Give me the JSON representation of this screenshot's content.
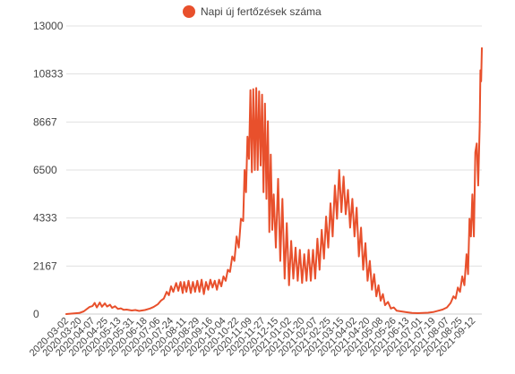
{
  "chart_data": {
    "type": "line",
    "legend": {
      "label": "Napi új fertőzések száma",
      "position": "top-center"
    },
    "series": [
      {
        "name": "Napi új fertőzések száma",
        "color": "#e8502c",
        "points": [
          [
            "2020-03-02",
            0
          ],
          [
            "2020-03-20",
            50
          ],
          [
            "2020-03-26",
            120
          ],
          [
            "2020-04-03",
            320
          ],
          [
            "2020-04-07",
            360
          ],
          [
            "2020-04-10",
            500
          ],
          [
            "2020-04-13",
            300
          ],
          [
            "2020-04-17",
            520
          ],
          [
            "2020-04-20",
            330
          ],
          [
            "2020-04-24",
            480
          ],
          [
            "2020-04-27",
            340
          ],
          [
            "2020-05-01",
            420
          ],
          [
            "2020-05-04",
            280
          ],
          [
            "2020-05-08",
            350
          ],
          [
            "2020-05-12",
            230
          ],
          [
            "2020-05-16",
            260
          ],
          [
            "2020-05-20",
            190
          ],
          [
            "2020-05-24",
            200
          ],
          [
            "2020-05-31",
            160
          ],
          [
            "2020-06-05",
            180
          ],
          [
            "2020-06-10",
            140
          ],
          [
            "2020-06-18",
            180
          ],
          [
            "2020-06-25",
            250
          ],
          [
            "2020-06-30",
            320
          ],
          [
            "2020-07-06",
            450
          ],
          [
            "2020-07-10",
            600
          ],
          [
            "2020-07-14",
            700
          ],
          [
            "2020-07-18",
            1000
          ],
          [
            "2020-07-21",
            850
          ],
          [
            "2020-07-24",
            1250
          ],
          [
            "2020-07-27",
            1000
          ],
          [
            "2020-07-31",
            1400
          ],
          [
            "2020-08-03",
            1050
          ],
          [
            "2020-08-06",
            1450
          ],
          [
            "2020-08-09",
            950
          ],
          [
            "2020-08-11",
            1450
          ],
          [
            "2020-08-14",
            1000
          ],
          [
            "2020-08-17",
            1500
          ],
          [
            "2020-08-20",
            950
          ],
          [
            "2020-08-23",
            1450
          ],
          [
            "2020-08-26",
            1000
          ],
          [
            "2020-08-29",
            1500
          ],
          [
            "2020-09-01",
            1000
          ],
          [
            "2020-09-04",
            1550
          ],
          [
            "2020-09-07",
            900
          ],
          [
            "2020-09-10",
            1450
          ],
          [
            "2020-09-13",
            1100
          ],
          [
            "2020-09-16",
            1550
          ],
          [
            "2020-09-19",
            1200
          ],
          [
            "2020-09-22",
            1500
          ],
          [
            "2020-09-25",
            1100
          ],
          [
            "2020-09-28",
            1550
          ],
          [
            "2020-10-01",
            1250
          ],
          [
            "2020-10-04",
            1700
          ],
          [
            "2020-10-07",
            1500
          ],
          [
            "2020-10-10",
            2000
          ],
          [
            "2020-10-13",
            1900
          ],
          [
            "2020-10-16",
            2600
          ],
          [
            "2020-10-19",
            2400
          ],
          [
            "2020-10-22",
            3500
          ],
          [
            "2020-10-25",
            3000
          ],
          [
            "2020-10-28",
            4300
          ],
          [
            "2020-10-31",
            4200
          ],
          [
            "2020-11-02",
            6500
          ],
          [
            "2020-11-04",
            5500
          ],
          [
            "2020-11-06",
            8000
          ],
          [
            "2020-11-08",
            7000
          ],
          [
            "2020-11-10",
            10100
          ],
          [
            "2020-11-12",
            6400
          ],
          [
            "2020-11-14",
            10150
          ],
          [
            "2020-11-16",
            6500
          ],
          [
            "2020-11-18",
            10200
          ],
          [
            "2020-11-20",
            6500
          ],
          [
            "2020-11-22",
            10050
          ],
          [
            "2020-11-24",
            6700
          ],
          [
            "2020-11-26",
            9900
          ],
          [
            "2020-11-28",
            5500
          ],
          [
            "2020-11-30",
            9500
          ],
          [
            "2020-12-02",
            5200
          ],
          [
            "2020-12-04",
            8700
          ],
          [
            "2020-12-06",
            3700
          ],
          [
            "2020-12-08",
            7200
          ],
          [
            "2020-12-10",
            3800
          ],
          [
            "2020-12-12",
            5400
          ],
          [
            "2020-12-15",
            3000
          ],
          [
            "2020-12-18",
            6100
          ],
          [
            "2020-12-21",
            2400
          ],
          [
            "2020-12-24",
            5200
          ],
          [
            "2020-12-27",
            1600
          ],
          [
            "2020-12-30",
            4100
          ],
          [
            "2021-01-02",
            1300
          ],
          [
            "2021-01-05",
            3300
          ],
          [
            "2021-01-08",
            1600
          ],
          [
            "2021-01-11",
            3000
          ],
          [
            "2021-01-14",
            1500
          ],
          [
            "2021-01-17",
            2900
          ],
          [
            "2021-01-20",
            1400
          ],
          [
            "2021-01-23",
            2700
          ],
          [
            "2021-01-26",
            1500
          ],
          [
            "2021-01-29",
            2900
          ],
          [
            "2021-02-01",
            1500
          ],
          [
            "2021-02-04",
            2900
          ],
          [
            "2021-02-07",
            1600
          ],
          [
            "2021-02-10",
            3400
          ],
          [
            "2021-02-13",
            2000
          ],
          [
            "2021-02-16",
            3800
          ],
          [
            "2021-02-19",
            2500
          ],
          [
            "2021-02-22",
            4400
          ],
          [
            "2021-02-25",
            3000
          ],
          [
            "2021-02-28",
            5000
          ],
          [
            "2021-03-03",
            3500
          ],
          [
            "2021-03-06",
            5800
          ],
          [
            "2021-03-09",
            4300
          ],
          [
            "2021-03-12",
            6500
          ],
          [
            "2021-03-15",
            4600
          ],
          [
            "2021-03-18",
            6200
          ],
          [
            "2021-03-21",
            4500
          ],
          [
            "2021-03-24",
            5600
          ],
          [
            "2021-03-27",
            3900
          ],
          [
            "2021-03-30",
            5200
          ],
          [
            "2021-04-02",
            3500
          ],
          [
            "2021-04-05",
            4800
          ],
          [
            "2021-04-08",
            2600
          ],
          [
            "2021-04-11",
            3900
          ],
          [
            "2021-04-14",
            2000
          ],
          [
            "2021-04-17",
            3200
          ],
          [
            "2021-04-20",
            1500
          ],
          [
            "2021-04-23",
            2400
          ],
          [
            "2021-04-26",
            1100
          ],
          [
            "2021-04-29",
            1800
          ],
          [
            "2021-05-02",
            800
          ],
          [
            "2021-05-05",
            1300
          ],
          [
            "2021-05-08",
            600
          ],
          [
            "2021-05-11",
            900
          ],
          [
            "2021-05-14",
            400
          ],
          [
            "2021-05-18",
            550
          ],
          [
            "2021-05-22",
            250
          ],
          [
            "2021-05-26",
            300
          ],
          [
            "2021-05-30",
            150
          ],
          [
            "2021-06-05",
            120
          ],
          [
            "2021-06-13",
            80
          ],
          [
            "2021-06-20",
            50
          ],
          [
            "2021-06-28",
            40
          ],
          [
            "2021-07-05",
            50
          ],
          [
            "2021-07-12",
            60
          ],
          [
            "2021-07-19",
            90
          ],
          [
            "2021-07-26",
            150
          ],
          [
            "2021-08-01",
            200
          ],
          [
            "2021-08-07",
            300
          ],
          [
            "2021-08-12",
            500
          ],
          [
            "2021-08-16",
            800
          ],
          [
            "2021-08-19",
            700
          ],
          [
            "2021-08-22",
            1200
          ],
          [
            "2021-08-25",
            1000
          ],
          [
            "2021-08-28",
            1700
          ],
          [
            "2021-08-31",
            1300
          ],
          [
            "2021-09-03",
            2700
          ],
          [
            "2021-09-05",
            1800
          ],
          [
            "2021-09-07",
            4300
          ],
          [
            "2021-09-09",
            3500
          ],
          [
            "2021-09-11",
            5400
          ],
          [
            "2021-09-13",
            3500
          ],
          [
            "2021-09-15",
            7300
          ],
          [
            "2021-09-17",
            7700
          ],
          [
            "2021-09-19",
            5800
          ],
          [
            "2021-09-21",
            8500
          ],
          [
            "2021-09-22",
            11000
          ],
          [
            "2021-09-23",
            10500
          ],
          [
            "2021-09-24",
            12000
          ]
        ]
      }
    ],
    "x_axis": {
      "type": "date",
      "range": [
        "2020-03-02",
        "2021-09-24"
      ],
      "tick_labels": [
        "2020-03-02",
        "2020-03-20",
        "2020-04-07",
        "2020-04-25",
        "2020-05-13",
        "2020-05-31",
        "2020-06-18",
        "2020-07-06",
        "2020-07-24",
        "2020-08-11",
        "2020-08-29",
        "2020-09-16",
        "2020-10-04",
        "2020-10-22",
        "2020-11-09",
        "2020-11-27",
        "2020-12-15",
        "2021-01-02",
        "2021-01-20",
        "2021-02-07",
        "2021-02-25",
        "2021-03-15",
        "2021-04-02",
        "2021-04-20",
        "2021-05-08",
        "2021-05-26",
        "2021-06-13",
        "2021-07-01",
        "2021-07-19",
        "2021-08-07",
        "2021-08-25",
        "2021-09-12"
      ],
      "label_rotation": "angled"
    },
    "y_axis": {
      "range": [
        0,
        13000
      ],
      "ticks": [
        0,
        2167,
        4333,
        6500,
        8667,
        10833,
        13000
      ],
      "tick_labels": [
        "0",
        "2167",
        "4333",
        "6500",
        "8667",
        "10833",
        "13000"
      ]
    },
    "grid": true
  }
}
